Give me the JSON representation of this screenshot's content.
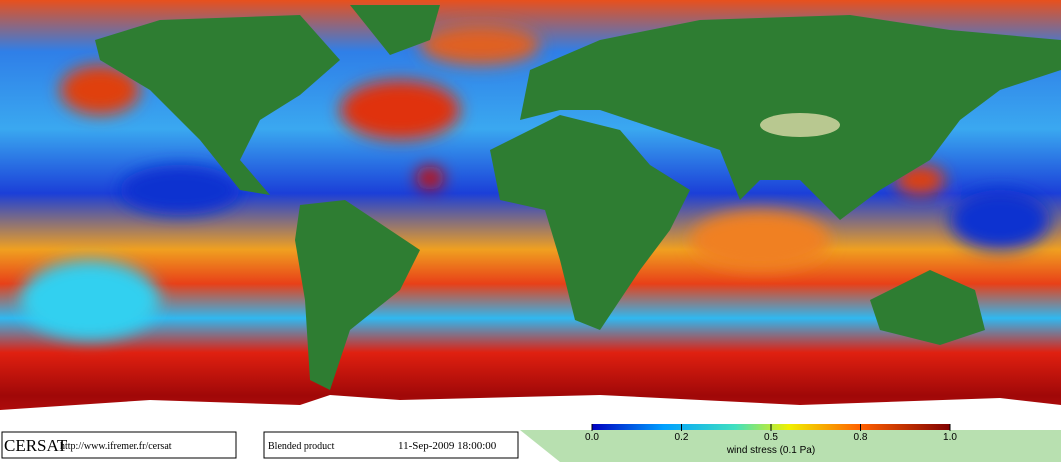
{
  "header": {
    "logo": "CERSAT",
    "url": "http://www.ifremer.fr/cersat",
    "product": "Blended product",
    "timestamp": "11-Sep-2009 18:00:00"
  },
  "colorbar": {
    "label": "wind stress (0.1 Pa)",
    "ticks": [
      {
        "value": 0,
        "label": "0.0"
      },
      {
        "value": 0.2,
        "label": "0.2"
      },
      {
        "value": 0.5,
        "label": "0.5"
      },
      {
        "value": 0.8,
        "label": "0.8"
      },
      {
        "value": 1,
        "label": "1.0"
      }
    ]
  }
}
